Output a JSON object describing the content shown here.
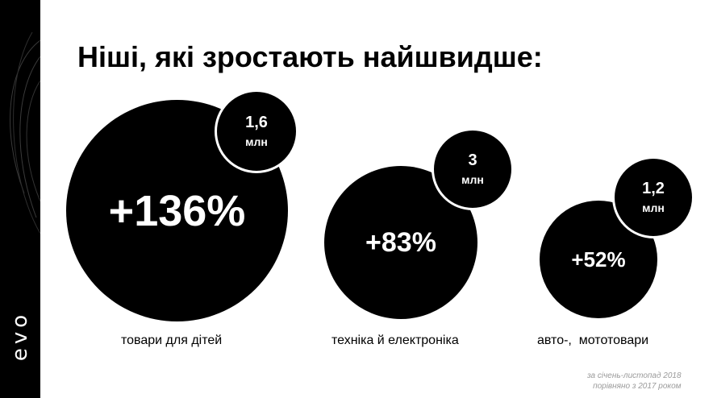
{
  "title": "Ніші, які зростають найшвидше:",
  "brand": "evo",
  "niches": [
    {
      "growth": "+136%",
      "volume": "1,6",
      "unit": "млн",
      "label": "товари для дітей"
    },
    {
      "growth": "+83%",
      "volume": "3",
      "unit": "млн",
      "label": "техніка й електроніка"
    },
    {
      "growth": "+52%",
      "volume": "1,2",
      "unit": "млн",
      "label": "авто-,  мототовари"
    }
  ],
  "footnote": {
    "line1": "за січень-листопад  2018",
    "line2": "порівняно з 2017 роком"
  },
  "colors": {
    "circle": "#000000",
    "text_on_circle": "#ffffff",
    "footnote": "#9a9a9a"
  }
}
